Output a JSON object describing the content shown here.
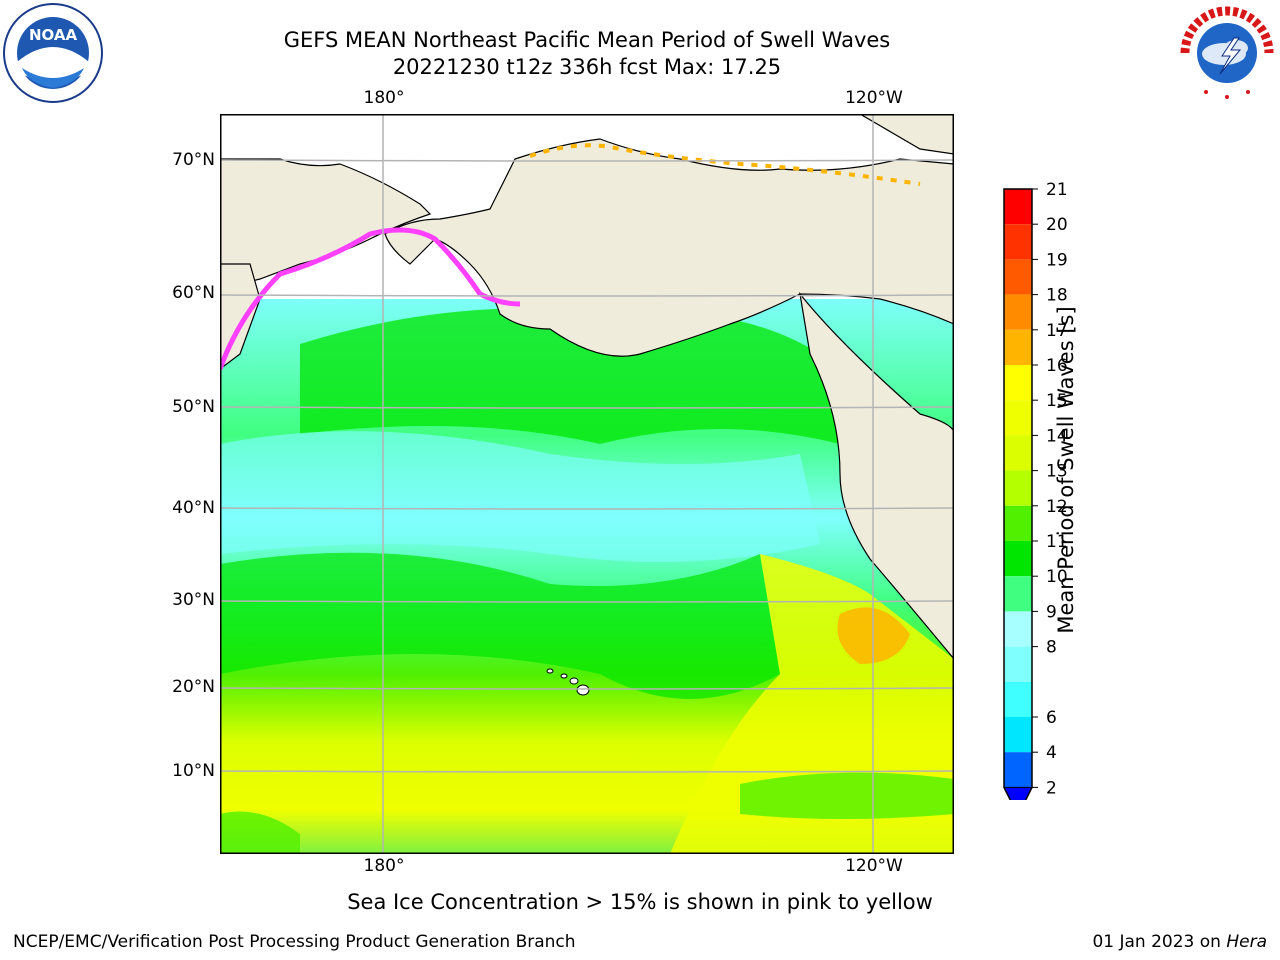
{
  "header": {
    "title_line1": "GEFS MEAN Northeast Pacific Mean Period of Swell Waves",
    "title_line2": "20221230 t12z 336h fcst   Max: 17.25"
  },
  "logos": {
    "left": "noaa-logo",
    "right": "national-weather-service-logo"
  },
  "map": {
    "lon_labels_top": [
      "180°",
      "120°W"
    ],
    "lon_labels_bottom": [
      "180°",
      "120°W"
    ],
    "lat_labels": [
      "70°N",
      "60°N",
      "50°N",
      "40°N",
      "30°N",
      "20°N",
      "10°N"
    ],
    "land_color": "#efecdc",
    "grid_color": "#b4b4b4"
  },
  "colorbar": {
    "title": "Mean Period of Swell Waves [s]",
    "levels": [
      "2",
      "4",
      "6",
      "7",
      "8",
      "9",
      "10",
      "11",
      "12",
      "13",
      "14",
      "15",
      "16",
      "17",
      "18",
      "19",
      "20",
      "21"
    ],
    "tick_labels": [
      "2",
      "4",
      "6",
      "8",
      "9",
      "10",
      "11",
      "12",
      "13",
      "14",
      "15",
      "16",
      "17",
      "18",
      "19",
      "20",
      "21"
    ],
    "colors": [
      "#0064ff",
      "#00e6ff",
      "#40ffff",
      "#80ffff",
      "#a8ffff",
      "#40ff80",
      "#00e600",
      "#50f000",
      "#b4ff00",
      "#dcff00",
      "#f0ff00",
      "#ffff00",
      "#ffb400",
      "#ff8c00",
      "#ff5a00",
      "#ff3200",
      "#ff0000"
    ],
    "under_color": "#0000ff"
  },
  "notes": {
    "ice_note": "Sea Ice Concentration > 15% is shown in pink to yellow"
  },
  "footer": {
    "left": "NCEP/EMC/Verification Post Processing Product Generation Branch",
    "right_date": "01 Jan 2023 on",
    "right_host": "Hera"
  }
}
